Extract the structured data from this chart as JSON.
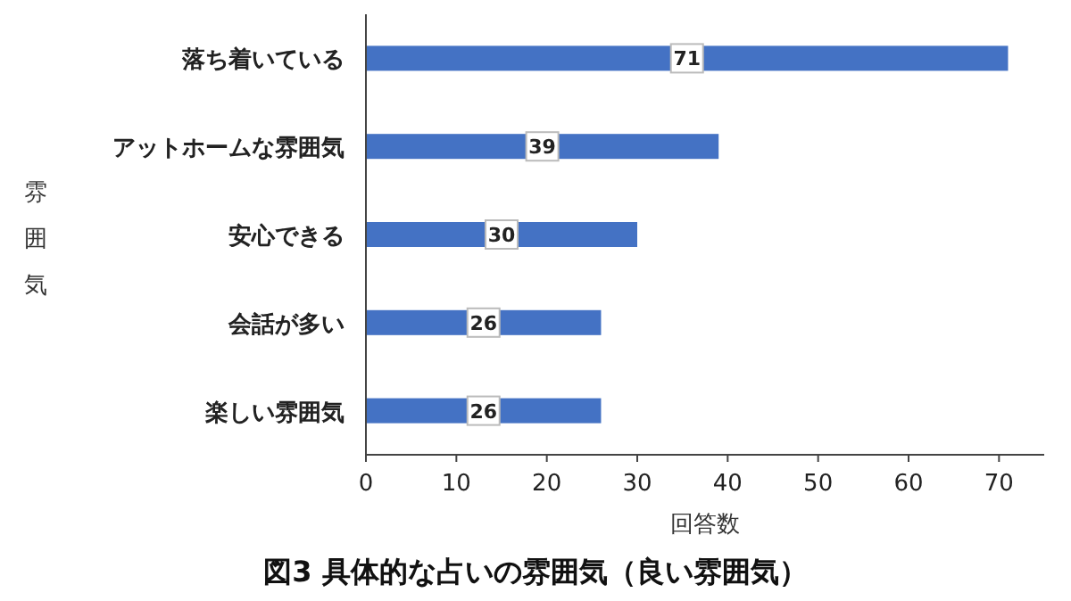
{
  "chart_data": {
    "type": "bar",
    "orientation": "horizontal",
    "title": "図3 具体的な占いの雰囲気（良い雰囲気）",
    "xlabel": "回答数",
    "ylabel": "雰囲気",
    "categories": [
      "落ち着いている",
      "アットホームな雰囲気",
      "安心できる",
      "会話が多い",
      "楽しい雰囲気"
    ],
    "values": [
      71,
      39,
      30,
      26,
      26
    ],
    "color": "#4472c4",
    "xlim": [
      0,
      75
    ],
    "xticks": [
      0,
      10,
      20,
      30,
      40,
      50,
      60,
      70
    ],
    "data_labels": true
  }
}
